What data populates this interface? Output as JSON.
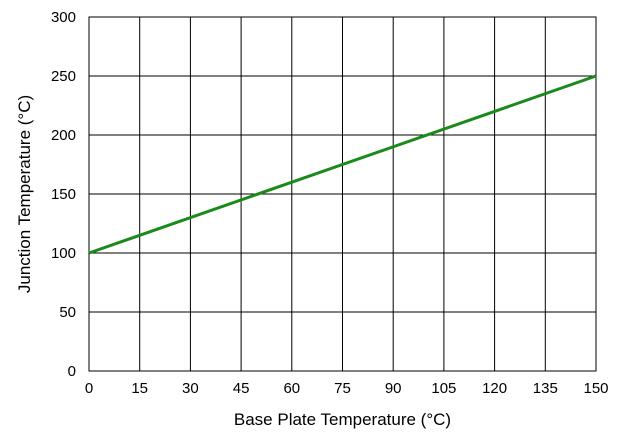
{
  "chart_data": {
    "type": "line",
    "title": "",
    "xlabel": "Base Plate Temperature (°C)",
    "ylabel": "Junction Temperature (°C)",
    "xlim": [
      0,
      150
    ],
    "ylim": [
      0,
      300
    ],
    "xticks": [
      0,
      15,
      30,
      45,
      60,
      75,
      90,
      105,
      120,
      135,
      150
    ],
    "yticks": [
      0,
      50,
      100,
      150,
      200,
      250,
      300
    ],
    "grid": true,
    "series": [
      {
        "color": "#1a8a1a",
        "x": [
          0,
          150
        ],
        "y": [
          100,
          250
        ]
      }
    ]
  }
}
